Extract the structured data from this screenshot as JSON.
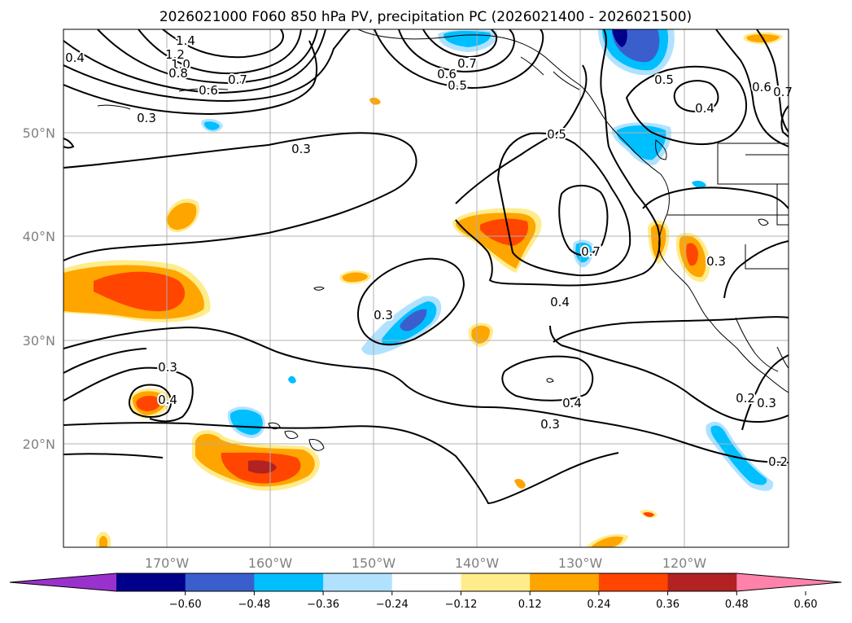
{
  "title": "2026021000 F060 850 hPa PV, precipitation PC (2026021400 - 2026021500)",
  "lat_labels": [
    "50°N",
    "40°N",
    "30°N",
    "20°N"
  ],
  "lon_labels": [
    "170°W",
    "160°W",
    "150°W",
    "140°W",
    "130°W",
    "120°W"
  ],
  "colorbar": {
    "tick_labels": [
      "−0.60",
      "−0.48",
      "−0.36",
      "−0.24",
      "−0.12",
      "0.12",
      "0.24",
      "0.36",
      "0.48",
      "0.60"
    ],
    "colors": [
      "#9932cc",
      "#00008b",
      "#3a5fcd",
      "#00bfff",
      "#b0e2ff",
      "#ffffff",
      "#ffec8b",
      "#ffa500",
      "#ff4500",
      "#b22222",
      "#ff82ab"
    ],
    "extend": "both"
  },
  "contour_labels": [
    "1.4",
    "1.2",
    "1.0",
    "0.8",
    "0.6",
    "0.7",
    "0.4",
    "0.3",
    "0.3",
    "0.7",
    "0.6",
    "0.5",
    "0.5",
    "0.5",
    "0.4",
    "0.6",
    "0.7",
    "0.7",
    "0.3",
    "0.3",
    "0.4",
    "0.4",
    "0.3",
    "0.3",
    "0.4",
    "0.2",
    "0.2",
    "0.3"
  ]
}
